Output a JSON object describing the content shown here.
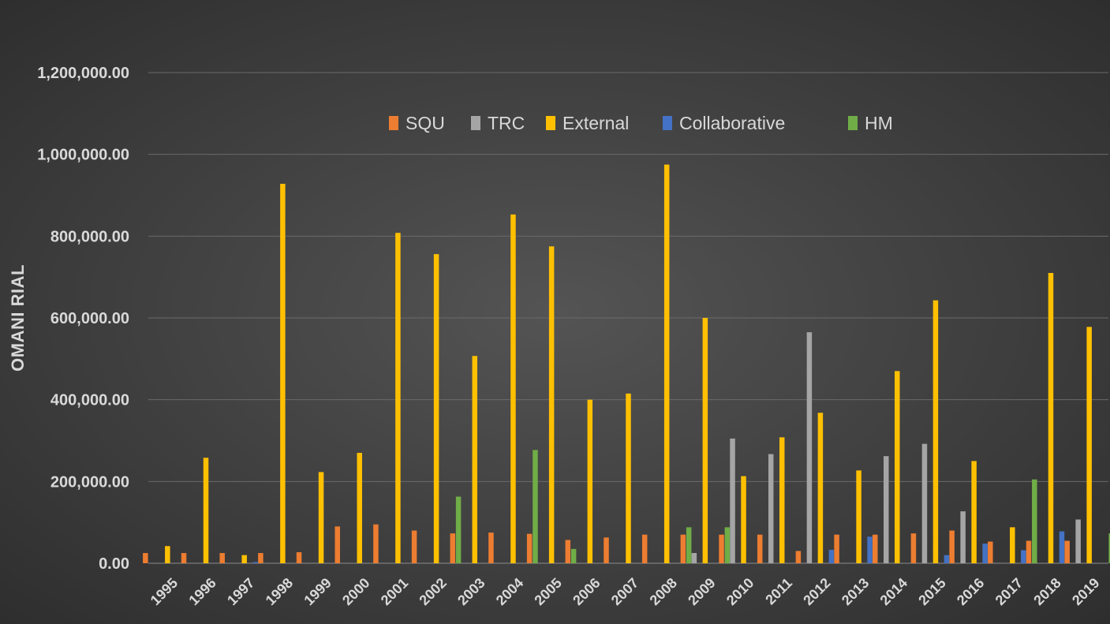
{
  "chart_data": {
    "type": "bar",
    "title": "",
    "xlabel": "",
    "ylabel": "OMANI RIAL",
    "ylim": [
      0,
      1200000
    ],
    "yticks": [
      0,
      200000,
      400000,
      600000,
      800000,
      1000000,
      1200000
    ],
    "ytick_labels": [
      "0.00",
      "200,000.00",
      "400,000.00",
      "600,000.00",
      "800,000.00",
      "1,000,000.00",
      "1,200,000.00"
    ],
    "grid": true,
    "legend_position": "top",
    "categories": [
      "1995",
      "1996",
      "1997",
      "1998",
      "1999",
      "2000",
      "2001",
      "2002",
      "2003",
      "2004",
      "2005",
      "2006",
      "2007",
      "2008",
      "2009",
      "2010",
      "2011",
      "2012",
      "2013",
      "2014",
      "2015",
      "2016",
      "2017",
      "2018",
      "2019"
    ],
    "series": [
      {
        "name": "SQU",
        "color": "#ed7d31",
        "values": [
          25000,
          25000,
          25000,
          25000,
          27000,
          90000,
          95000,
          80000,
          73000,
          75000,
          72000,
          57000,
          63000,
          70000,
          70000,
          70000,
          70000,
          30000,
          70000,
          70000,
          73000,
          80000,
          53000,
          55000,
          55000
        ]
      },
      {
        "name": "TRC",
        "color": "#a5a5a5",
        "values": [
          0,
          0,
          0,
          0,
          0,
          0,
          0,
          0,
          0,
          0,
          0,
          0,
          0,
          0,
          25000,
          305000,
          267000,
          565000,
          0,
          262000,
          292000,
          127000,
          0,
          0,
          107000
        ]
      },
      {
        "name": "External",
        "color": "#ffc000",
        "values": [
          42000,
          258000,
          20000,
          928000,
          223000,
          270000,
          808000,
          756000,
          507000,
          853000,
          775000,
          400000,
          415000,
          975000,
          600000,
          213000,
          308000,
          368000,
          227000,
          470000,
          643000,
          250000,
          88000,
          710000,
          578000
        ]
      },
      {
        "name": "Collaborative",
        "color": "#4472c4",
        "values": [
          0,
          0,
          3000,
          0,
          0,
          0,
          0,
          0,
          0,
          0,
          0,
          0,
          0,
          0,
          0,
          0,
          0,
          33000,
          65000,
          0,
          20000,
          48000,
          32000,
          78000,
          0
        ]
      },
      {
        "name": "HM",
        "color": "#70ad47",
        "values": [
          0,
          0,
          0,
          0,
          0,
          0,
          0,
          163000,
          0,
          277000,
          35000,
          0,
          0,
          88000,
          88000,
          0,
          0,
          0,
          0,
          0,
          0,
          0,
          205000,
          0,
          73000
        ]
      }
    ]
  }
}
